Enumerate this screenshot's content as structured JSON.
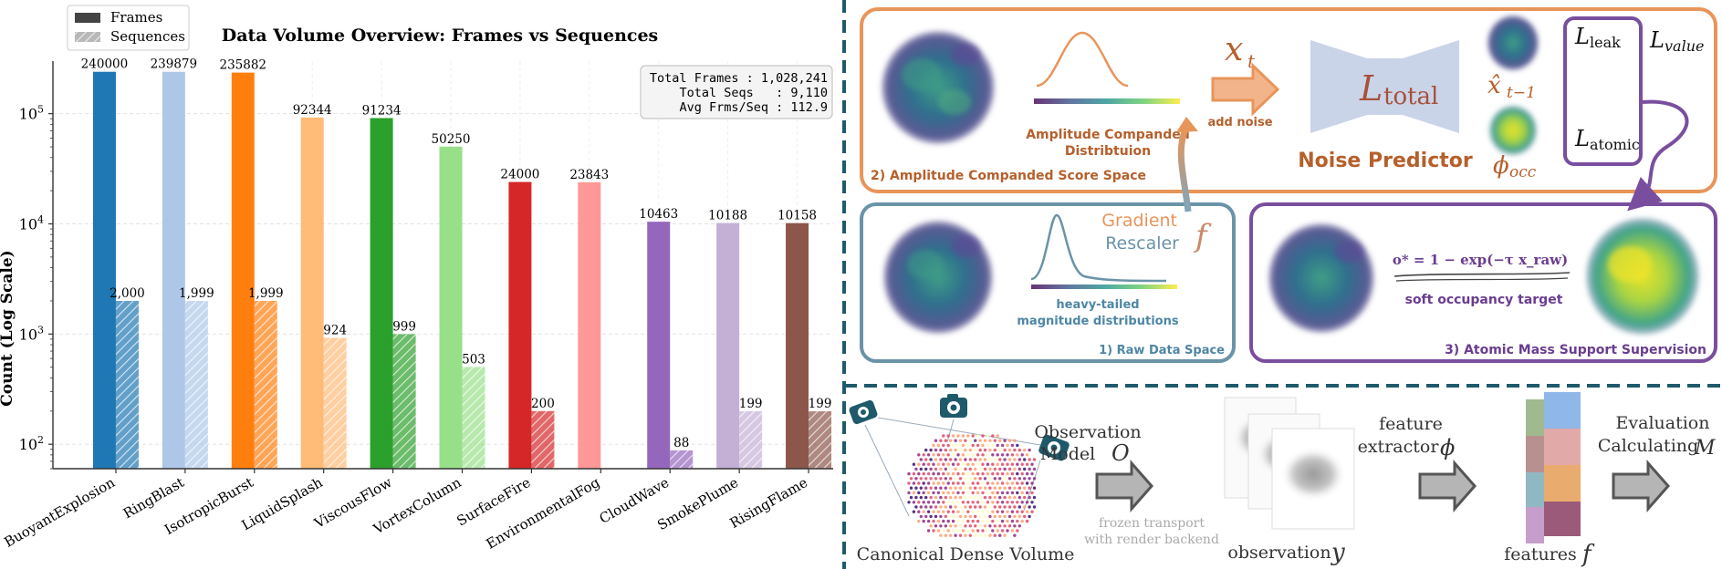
{
  "chart_data": {
    "type": "bar",
    "title": "Data Volume Overview: Frames vs Sequences",
    "ylabel": "Count (Log Scale)",
    "xlabel": "",
    "yscale": "log",
    "ylim": [
      60,
      300000
    ],
    "grid": true,
    "legend": {
      "placement": "top-left",
      "entries": [
        "Frames",
        "Sequences"
      ]
    },
    "categories": [
      "BuoyantExplosion",
      "RingBlast",
      "IsotropicBurst",
      "LiquidSplash",
      "ViscousFlow",
      "VortexColumn",
      "SurfaceFire",
      "EnvironmentalFog",
      "CloudWave",
      "SmokePlume",
      "RisingFlame"
    ],
    "colors": [
      "#1f77b4",
      "#aec7e8",
      "#ff7f0e",
      "#ffbb78",
      "#2ca02c",
      "#98df8a",
      "#d62728",
      "#ff9896",
      "#9467bd",
      "#c5b0d5",
      "#8c564b"
    ],
    "series": [
      {
        "name": "Frames",
        "values": [
          240000,
          239879,
          235882,
          92344,
          91234,
          50250,
          24000,
          23843,
          10463,
          10188,
          10158
        ],
        "labels": [
          "240000",
          "239879",
          "235882",
          "92344",
          "91234",
          "50250",
          "24000",
          "23843",
          "10463",
          "10188",
          "10158"
        ]
      },
      {
        "name": "Sequences",
        "values": [
          2000,
          1999,
          1999,
          924,
          999,
          503,
          200,
          null,
          88,
          199,
          199
        ],
        "labels": [
          "2,000",
          "1,999",
          "1,999",
          "924",
          "999",
          "503",
          "200",
          "",
          "88",
          "199",
          "199"
        ]
      }
    ],
    "yticks": [
      {
        "value": 100,
        "base": "10",
        "exp": "2"
      },
      {
        "value": 1000,
        "base": "10",
        "exp": "3"
      },
      {
        "value": 10000,
        "base": "10",
        "exp": "4"
      },
      {
        "value": 100000,
        "base": "10",
        "exp": "5"
      }
    ],
    "stats": [
      "Total Frames : 1,028,241",
      "Total Seqs   : 9,110",
      "Avg Frms/Seq : 112.9"
    ]
  },
  "diagram": {
    "panel_amplitude": {
      "label": "2) Amplitude Companded Score Space",
      "curve_caption_1": "Amplitude Companded",
      "curve_caption_2": "Distribtuion",
      "xt_base": "x",
      "xt_sub": "t",
      "add_noise": "add noise",
      "loss_total_script": "L",
      "loss_total_sub": "total",
      "noise_predictor": "Noise Predictor",
      "xhat_base": "x̂",
      "xhat_sub": "t−1",
      "phi_base": "ϕ",
      "phi_sub": "occ",
      "loss_leak_sub": "leak",
      "loss_value_sub": "value",
      "loss_atomic_sub": "atomic",
      "loss_script": "L"
    },
    "panel_raw": {
      "label": "1) Raw Data Space",
      "caption_1": "heavy-tailed",
      "caption_2": "magnitude distributions",
      "gradient": "Gradient",
      "rescaler": "Rescaler",
      "f_symbol": "f"
    },
    "panel_atomic": {
      "label": "3) Atomic Mass Support Supervision",
      "formula": "o* = 1 − exp(−τ x_raw)",
      "caption": "soft occupancy target"
    },
    "pipeline": {
      "volume_label": "Canonical Dense Volume",
      "obs_model_1": "Observation",
      "obs_model_2": "Model",
      "obs_model_sym": "O",
      "frozen_1": "frozen transport",
      "frozen_2": "with render backend",
      "observation_label": "observation",
      "observation_sym": "y",
      "feature_1": "feature",
      "feature_2": "extractor",
      "feature_sym": "ϕ",
      "features_label": "features",
      "features_sym": "f",
      "eval_1": "Evaluation",
      "eval_2": "Calculating",
      "eval_sym": "M"
    },
    "colors": {
      "orange_frame": "#e8955a",
      "blue_frame": "#6a93a8",
      "purple_frame": "#7a4e9e",
      "teal_divider": "#1f5a6b",
      "caption_orange": "#b5602c",
      "caption_blue": "#4f86a4",
      "caption_purple": "#6a3d8f",
      "arrow_gray": "#b5b5b5"
    }
  }
}
